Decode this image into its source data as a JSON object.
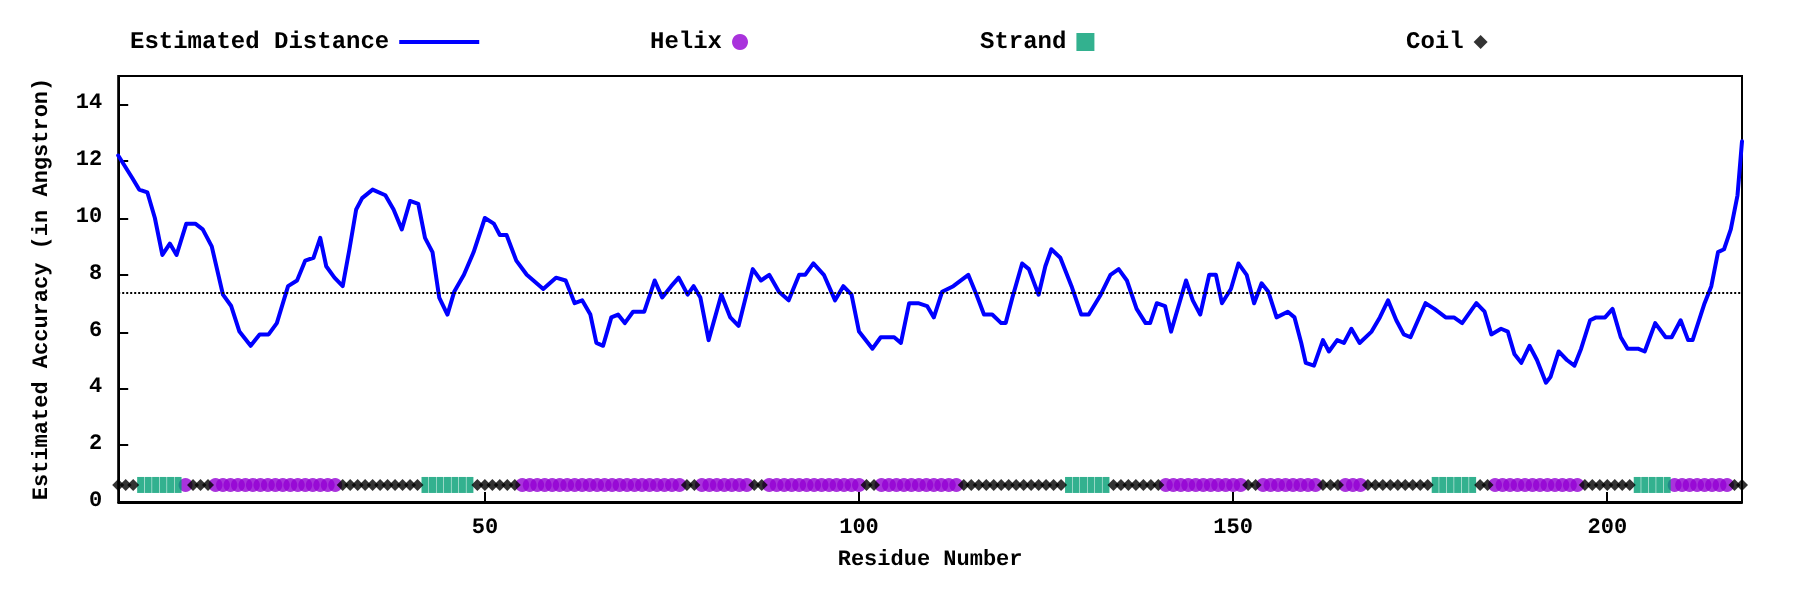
{
  "chart_data": {
    "type": "line",
    "xlabel": "Residue Number",
    "ylabel": "Estimated Accuracy (in Angstron)",
    "xlim": [
      1,
      218
    ],
    "xticks": [
      50,
      100,
      150,
      200
    ],
    "ylim": [
      0,
      15
    ],
    "yticks": [
      0,
      2,
      4,
      6,
      8,
      10,
      12,
      14
    ],
    "grid": false,
    "legend": "top",
    "ref_lines": [
      {
        "axis": "y",
        "value": 7.4,
        "color": "#000000",
        "line_style": "dotted"
      }
    ],
    "series": [
      {
        "name": "Estimated Distance",
        "color": "#0000ff",
        "marker": "none",
        "line_style": "solid",
        "x": [
          1,
          2.9,
          3.8,
          4.9,
          5.9,
          6.9,
          7.9,
          8.8,
          10.1,
          11.3,
          12.3,
          13.5,
          15,
          16.1,
          17.2,
          18.7,
          19.9,
          21.1,
          22.2,
          23.7,
          24.9,
          26,
          27.1,
          28,
          28.8,
          29.9,
          31,
          31.9,
          32.8,
          33.6,
          35,
          36.7,
          37.8,
          38.9,
          40,
          41.1,
          42,
          43,
          43.9,
          45,
          45.9,
          47.2,
          48.5,
          50,
          51.2,
          52,
          52.9,
          54.2,
          55.6,
          57.8,
          59.5,
          60.8,
          62,
          63,
          64.1,
          64.9,
          65.8,
          66.9,
          67.8,
          68.7,
          69.8,
          71.3,
          72.7,
          73.7,
          74.9,
          75.9,
          77.1,
          77.9,
          78.8,
          79.9,
          81.6,
          82.8,
          83.9,
          85.8,
          86.9,
          88,
          89.3,
          90.6,
          92,
          92.8,
          93.9,
          95.3,
          96.8,
          97.9,
          99,
          100,
          101.8,
          102.9,
          104.7,
          105.6,
          106.7,
          107.9,
          109.1,
          110,
          111.1,
          112.6,
          114.6,
          115.7,
          116.7,
          117.8,
          119,
          119.6,
          120.5,
          121.8,
          122.7,
          124,
          124.9,
          125.7,
          126.9,
          128.4,
          129.7,
          130.7,
          132.3,
          133.6,
          134.7,
          135.8,
          137.1,
          138.3,
          138.9,
          139.8,
          140.9,
          141.7,
          142.7,
          143.7,
          144.6,
          145.6,
          146.8,
          147.7,
          148.5,
          149.7,
          150.7,
          151.8,
          152.8,
          153.8,
          154.7,
          155.8,
          157.3,
          158.2,
          159.1,
          159.7,
          160.8,
          162,
          162.8,
          163.9,
          164.8,
          165.8,
          166.9,
          168.5,
          169.6,
          170.7,
          171.8,
          172.8,
          173.7,
          175.7,
          176.9,
          178.4,
          179.5,
          180.6,
          182.5,
          183.6,
          184.5,
          185.8,
          186.7,
          187.6,
          188.5,
          189.6,
          190.6,
          191.8,
          192.4,
          193.5,
          194.6,
          195.6,
          196.5,
          197.7,
          198.5,
          199.7,
          200.7,
          201.8,
          202.7,
          204.1,
          205,
          206.4,
          207.8,
          208.6,
          209.8,
          210.8,
          211.4,
          213,
          213.9,
          214.8,
          215.6,
          216.5,
          217.4,
          218
        ],
        "values": [
          12.2,
          11.4,
          11.0,
          10.9,
          10.0,
          8.7,
          9.1,
          8.7,
          9.8,
          9.8,
          9.6,
          9.0,
          7.3,
          6.9,
          6.0,
          5.5,
          5.9,
          5.9,
          6.3,
          7.6,
          7.8,
          8.5,
          8.6,
          9.3,
          8.3,
          7.9,
          7.6,
          8.9,
          10.3,
          10.7,
          11.0,
          10.8,
          10.3,
          9.6,
          10.6,
          10.5,
          9.3,
          8.8,
          7.2,
          6.6,
          7.4,
          8.0,
          8.8,
          10.0,
          9.8,
          9.4,
          9.4,
          8.5,
          8.0,
          7.5,
          7.9,
          7.8,
          7.0,
          7.1,
          6.6,
          5.6,
          5.5,
          6.5,
          6.6,
          6.3,
          6.7,
          6.7,
          7.8,
          7.2,
          7.6,
          7.9,
          7.3,
          7.6,
          7.2,
          5.7,
          7.3,
          6.5,
          6.2,
          8.2,
          7.8,
          8.0,
          7.4,
          7.1,
          8.0,
          8.0,
          8.4,
          8.0,
          7.1,
          7.6,
          7.3,
          6.0,
          5.4,
          5.8,
          5.8,
          5.6,
          7.0,
          7.0,
          6.9,
          6.5,
          7.4,
          7.6,
          8.0,
          7.3,
          6.6,
          6.6,
          6.3,
          6.3,
          7.2,
          8.4,
          8.2,
          7.3,
          8.3,
          8.9,
          8.6,
          7.6,
          6.6,
          6.6,
          7.3,
          8.0,
          8.2,
          7.8,
          6.8,
          6.3,
          6.3,
          7.0,
          6.9,
          6.0,
          6.9,
          7.8,
          7.1,
          6.6,
          8.0,
          8.0,
          7.0,
          7.5,
          8.4,
          8.0,
          7.0,
          7.7,
          7.4,
          6.5,
          6.7,
          6.5,
          5.6,
          4.9,
          4.8,
          5.7,
          5.3,
          5.7,
          5.6,
          6.1,
          5.6,
          6.0,
          6.5,
          7.1,
          6.4,
          5.9,
          5.8,
          7.0,
          6.8,
          6.5,
          6.5,
          6.3,
          7.0,
          6.7,
          5.9,
          6.1,
          6.0,
          5.2,
          4.9,
          5.5,
          5.0,
          4.2,
          4.4,
          5.3,
          5.0,
          4.8,
          5.4,
          6.4,
          6.5,
          6.5,
          6.8,
          5.8,
          5.4,
          5.4,
          5.3,
          6.3,
          5.8,
          5.8,
          6.4,
          5.7,
          5.7,
          7.0,
          7.6,
          8.8,
          8.9,
          9.6,
          10.8,
          12.7
        ]
      },
      {
        "name": "Helix",
        "type": "scatter",
        "color": "#9400d3",
        "marker": "circle",
        "x": [
          10,
          14,
          15,
          16,
          17,
          18,
          19,
          20,
          21,
          22,
          23,
          24,
          25,
          26,
          27,
          28,
          29,
          30,
          55,
          56,
          57,
          58,
          59,
          60,
          61,
          62,
          63,
          64,
          65,
          66,
          67,
          68,
          69,
          70,
          71,
          72,
          73,
          74,
          75,
          76,
          79,
          80,
          81,
          82,
          83,
          84,
          85,
          88,
          89,
          90,
          91,
          92,
          93,
          94,
          95,
          96,
          97,
          98,
          99,
          100,
          103,
          104,
          105,
          106,
          107,
          108,
          109,
          110,
          111,
          112,
          113,
          141,
          142,
          143,
          144,
          145,
          146,
          147,
          148,
          149,
          150,
          151,
          154,
          155,
          156,
          157,
          158,
          159,
          160,
          161,
          165,
          166,
          167,
          185,
          186,
          187,
          188,
          189,
          190,
          191,
          192,
          193,
          194,
          195,
          196,
          209,
          210,
          211,
          212,
          213,
          214,
          215,
          216
        ],
        "values": [
          0.6,
          0.6,
          0.6,
          0.6,
          0.6,
          0.6,
          0.6,
          0.6,
          0.6,
          0.6,
          0.6,
          0.6,
          0.6,
          0.6,
          0.6,
          0.6,
          0.6,
          0.6,
          0.6,
          0.6,
          0.6,
          0.6,
          0.6,
          0.6,
          0.6,
          0.6,
          0.6,
          0.6,
          0.6,
          0.6,
          0.6,
          0.6,
          0.6,
          0.6,
          0.6,
          0.6,
          0.6,
          0.6,
          0.6,
          0.6,
          0.6,
          0.6,
          0.6,
          0.6,
          0.6,
          0.6,
          0.6,
          0.6,
          0.6,
          0.6,
          0.6,
          0.6,
          0.6,
          0.6,
          0.6,
          0.6,
          0.6,
          0.6,
          0.6,
          0.6,
          0.6,
          0.6,
          0.6,
          0.6,
          0.6,
          0.6,
          0.6,
          0.6,
          0.6,
          0.6,
          0.6,
          0.6,
          0.6,
          0.6,
          0.6,
          0.6,
          0.6,
          0.6,
          0.6,
          0.6,
          0.6,
          0.6,
          0.6,
          0.6,
          0.6,
          0.6,
          0.6,
          0.6,
          0.6,
          0.6,
          0.6,
          0.6,
          0.6,
          0.6,
          0.6,
          0.6,
          0.6,
          0.6,
          0.6,
          0.6,
          0.6,
          0.6,
          0.6,
          0.6,
          0.6,
          0.6,
          0.6,
          0.6,
          0.6,
          0.6,
          0.6,
          0.6,
          0.6
        ]
      },
      {
        "name": "Strand",
        "type": "scatter",
        "color": "#009e73",
        "marker": "square",
        "x": [
          4,
          5,
          6,
          7,
          8,
          9,
          42,
          43,
          44,
          45,
          46,
          47,
          48,
          128,
          129,
          130,
          131,
          132,
          133,
          177,
          178,
          179,
          180,
          181,
          182,
          204,
          205,
          206,
          207,
          208
        ],
        "values": [
          0.6,
          0.6,
          0.6,
          0.6,
          0.6,
          0.6,
          0.6,
          0.6,
          0.6,
          0.6,
          0.6,
          0.6,
          0.6,
          0.6,
          0.6,
          0.6,
          0.6,
          0.6,
          0.6,
          0.6,
          0.6,
          0.6,
          0.6,
          0.6,
          0.6,
          0.6,
          0.6,
          0.6,
          0.6,
          0.6
        ]
      },
      {
        "name": "Coil",
        "type": "scatter",
        "color": "#000000",
        "marker": "diamond",
        "x": [
          1,
          2,
          3,
          11,
          12,
          13,
          31,
          32,
          33,
          34,
          35,
          36,
          37,
          38,
          39,
          40,
          41,
          49,
          50,
          51,
          52,
          53,
          54,
          77,
          78,
          86,
          87,
          101,
          102,
          114,
          115,
          116,
          117,
          118,
          119,
          120,
          121,
          122,
          123,
          124,
          125,
          126,
          127,
          134,
          135,
          136,
          137,
          138,
          139,
          140,
          152,
          153,
          162,
          163,
          164,
          168,
          169,
          170,
          171,
          172,
          173,
          174,
          175,
          176,
          183,
          184,
          197,
          198,
          199,
          200,
          201,
          202,
          203,
          217,
          218
        ],
        "values": [
          0.6,
          0.6,
          0.6,
          0.6,
          0.6,
          0.6,
          0.6,
          0.6,
          0.6,
          0.6,
          0.6,
          0.6,
          0.6,
          0.6,
          0.6,
          0.6,
          0.6,
          0.6,
          0.6,
          0.6,
          0.6,
          0.6,
          0.6,
          0.6,
          0.6,
          0.6,
          0.6,
          0.6,
          0.6,
          0.6,
          0.6,
          0.6,
          0.6,
          0.6,
          0.6,
          0.6,
          0.6,
          0.6,
          0.6,
          0.6,
          0.6,
          0.6,
          0.6,
          0.6,
          0.6,
          0.6,
          0.6,
          0.6,
          0.6,
          0.6,
          0.6,
          0.6,
          0.6,
          0.6,
          0.6,
          0.6,
          0.6,
          0.6,
          0.6,
          0.6,
          0.6,
          0.6,
          0.6,
          0.6,
          0.6,
          0.6,
          0.6,
          0.6,
          0.6,
          0.6,
          0.6,
          0.6,
          0.6,
          0.6,
          0.6
        ]
      }
    ]
  }
}
